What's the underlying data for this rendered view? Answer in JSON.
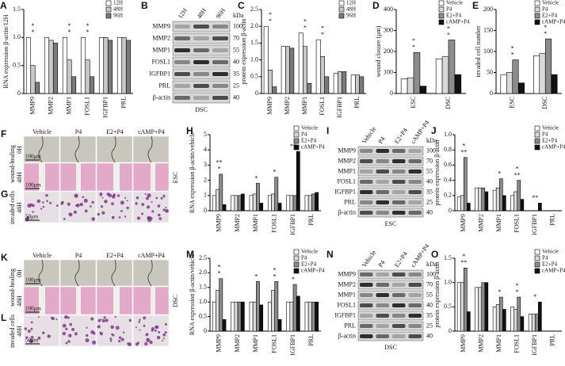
{
  "chart_data": [
    {
      "type": "bar",
      "label": "A",
      "ylabel": "RNA expression β-actin/12H",
      "categories": [
        "MMP9",
        "MMP2",
        "MMP1",
        "FOSL1",
        "IGFBP1",
        "PRL"
      ],
      "series": [
        {
          "name": "12H",
          "color": "#ffffff",
          "values": [
            1,
            1,
            1,
            1,
            1,
            1
          ]
        },
        {
          "name": "48H",
          "color": "#c8c8c8",
          "values": [
            0.5,
            0.95,
            0.6,
            0.6,
            1.0,
            1.0
          ]
        },
        {
          "name": "96H",
          "color": "#7a7a7a",
          "values": [
            0.2,
            0.9,
            0.3,
            0.3,
            0.95,
            0.95
          ]
        }
      ],
      "ylim": [
        0,
        1.5
      ],
      "yticks": [
        0,
        0.5,
        {
          "value": 1,
          "label": "1.0"
        },
        1.5
      ],
      "legend": "upper right",
      "annotations": [
        {
          "text": "*",
          "category": 0
        },
        {
          "text": "*",
          "category": 0
        },
        {
          "text": "*",
          "category": 2
        },
        {
          "text": "*",
          "category": 2
        },
        {
          "text": "*",
          "category": 3
        },
        {
          "text": "*",
          "category": 3
        }
      ]
    },
    {
      "type": "bar",
      "label": "C",
      "ylabel": "protein expression β-actin",
      "categories": [
        "MMP9",
        "MMP2",
        "MMP1",
        "FOSL1",
        "IGFBP1",
        "PRL"
      ],
      "series": [
        {
          "name": "12H",
          "color": "#ffffff",
          "values": [
            2.0,
            1.4,
            1.8,
            1.6,
            0.6,
            0.55
          ]
        },
        {
          "name": "48H",
          "color": "#c8c8c8",
          "values": [
            0.7,
            1.4,
            1.4,
            1.1,
            0.65,
            0.55
          ]
        },
        {
          "name": "96H",
          "color": "#7a7a7a",
          "values": [
            0.2,
            1.35,
            0.3,
            0.5,
            0.65,
            0.5
          ]
        }
      ],
      "ylim": [
        0,
        2.5
      ],
      "yticks": [
        0,
        0.5,
        {
          "value": 1,
          "label": "1.0"
        },
        1.5,
        {
          "value": 2,
          "label": "2.0"
        },
        2.5
      ],
      "legend": "upper right",
      "annotations": [
        {
          "text": "*",
          "category": 0
        },
        {
          "text": "*",
          "category": 0
        },
        {
          "text": "*",
          "category": 2
        },
        {
          "text": "*",
          "category": 2
        },
        {
          "text": "*",
          "category": 3
        },
        {
          "text": "*",
          "category": 3
        }
      ]
    },
    {
      "type": "bar",
      "label": "D",
      "ylabel": "wound closure (μm)",
      "categories": [
        "ESC",
        "DSC"
      ],
      "series": [
        {
          "name": "Vehicle",
          "color": "#ffffff",
          "values": [
            70,
            165
          ]
        },
        {
          "name": "P4",
          "color": "#d9d9d9",
          "values": [
            75,
            175
          ]
        },
        {
          "name": "E2+P4",
          "color": "#8c8c8c",
          "values": [
            195,
            255
          ]
        },
        {
          "name": "cAMP+P4",
          "color": "#111111",
          "values": [
            35,
            90
          ]
        }
      ],
      "ylim": [
        0,
        400
      ],
      "yticks": [
        0,
        100,
        200,
        300,
        400
      ],
      "legend": "upper right",
      "annotations": [
        {
          "text": "*",
          "category": 0
        },
        {
          "text": "*",
          "category": 0
        },
        {
          "text": "*",
          "category": 1
        },
        {
          "text": "*",
          "category": 1
        }
      ]
    },
    {
      "type": "bar",
      "label": "E",
      "ylabel": "invaded cell number",
      "categories": [
        "ESC",
        "DSC"
      ],
      "series": [
        {
          "name": "Vehicle",
          "color": "#ffffff",
          "values": [
            45,
            90
          ]
        },
        {
          "name": "P4",
          "color": "#d9d9d9",
          "values": [
            50,
            95
          ]
        },
        {
          "name": "E2+P4",
          "color": "#8c8c8c",
          "values": [
            80,
            130
          ]
        },
        {
          "name": "cAMP+P4",
          "color": "#111111",
          "values": [
            25,
            45
          ]
        }
      ],
      "ylim": [
        0,
        200
      ],
      "yticks": [
        0,
        50,
        100,
        150,
        200
      ],
      "legend": "upper right",
      "annotations": [
        {
          "text": "*",
          "category": 0
        },
        {
          "text": "*",
          "category": 0
        },
        {
          "text": "*",
          "category": 1
        },
        {
          "text": "*",
          "category": 1
        }
      ]
    },
    {
      "type": "bar",
      "label": "H",
      "ylabel": "RNA expression β-actin/vehicle",
      "categories": [
        "MMP9",
        "MMP2",
        "MMP1",
        "FOSL1",
        "IGFBP1",
        "PRL"
      ],
      "series": [
        {
          "name": "Vehicle",
          "color": "#ffffff",
          "values": [
            1,
            1,
            1,
            1,
            1,
            1
          ]
        },
        {
          "name": "P4",
          "color": "#d9d9d9",
          "values": [
            1.4,
            1.0,
            1.1,
            1.1,
            1.0,
            1.0
          ]
        },
        {
          "name": "E2+P4",
          "color": "#8c8c8c",
          "values": [
            2.4,
            1.0,
            1.8,
            2.2,
            1.0,
            1.1
          ]
        },
        {
          "name": "cAMP+P4",
          "color": "#111111",
          "values": [
            0.4,
            1.1,
            0.5,
            0.5,
            3.9,
            1.2
          ]
        }
      ],
      "ylim": [
        0,
        5
      ],
      "yticks": [
        0,
        1,
        2,
        3,
        4,
        5
      ],
      "legend": "upper right",
      "annotations": [
        {
          "text": "*",
          "category": 0
        },
        {
          "text": "**",
          "category": 0
        },
        {
          "text": "*",
          "category": 2
        },
        {
          "text": "*",
          "category": 3
        },
        {
          "text": "**",
          "category": 4
        }
      ]
    },
    {
      "type": "bar",
      "label": "J",
      "ylabel": "protein expression β-actin",
      "categories": [
        "MMP9",
        "MMP2",
        "MMP1",
        "FOSL1",
        "IGFBP1",
        "PRL"
      ],
      "series": [
        {
          "name": "Vehicle",
          "color": "#ffffff",
          "values": [
            0.18,
            0.3,
            0.27,
            0.2,
            0,
            0
          ]
        },
        {
          "name": "P4",
          "color": "#d9d9d9",
          "values": [
            0.2,
            0.3,
            0.3,
            0.25,
            0,
            0
          ]
        },
        {
          "name": "E2+P4",
          "color": "#8c8c8c",
          "values": [
            0.7,
            0.3,
            0.42,
            0.4,
            0,
            0
          ]
        },
        {
          "name": "cAMP+P4",
          "color": "#111111",
          "values": [
            0.1,
            0.25,
            0.2,
            0.15,
            0.1,
            0
          ]
        }
      ],
      "ylim": [
        0,
        1.0
      ],
      "yticks": [
        0,
        0.2,
        0.4,
        0.6,
        0.8,
        {
          "value": 1,
          "label": "1.0"
        }
      ],
      "legend": "upper right",
      "annotations": [
        {
          "text": "**",
          "category": 0
        },
        {
          "text": "*",
          "category": 0
        },
        {
          "text": "*",
          "category": 2
        },
        {
          "text": "**",
          "category": 3
        },
        {
          "text": "*",
          "category": 3
        },
        {
          "text": "**",
          "category": 4
        }
      ]
    },
    {
      "type": "bar",
      "label": "M",
      "ylabel": "RNA expression β-actin/vehicle",
      "categories": [
        "MMP9",
        "MMP2",
        "MMP1",
        "FOSL1",
        "IGFBP1",
        "PRL"
      ],
      "series": [
        {
          "name": "Vehicle",
          "color": "#ffffff",
          "values": [
            1,
            1,
            1,
            1,
            1,
            1
          ]
        },
        {
          "name": "P4",
          "color": "#d9d9d9",
          "values": [
            1.4,
            1.0,
            1.0,
            1.4,
            1.0,
            1.0
          ]
        },
        {
          "name": "E2+P4",
          "color": "#8c8c8c",
          "values": [
            1.8,
            1.0,
            1.7,
            1.7,
            1.6,
            1.0
          ]
        },
        {
          "name": "cAMP+P4",
          "color": "#111111",
          "values": [
            0.4,
            1.0,
            0.9,
            0.4,
            1.2,
            1.0
          ]
        }
      ],
      "ylim": [
        0,
        2.5
      ],
      "yticks": [
        0,
        0.5,
        {
          "value": 1,
          "label": "1.0"
        },
        1.5,
        {
          "value": 2,
          "label": "2.0"
        },
        2.5
      ],
      "legend": "upper right",
      "annotations": [
        {
          "text": "*",
          "category": 0
        },
        {
          "text": "*",
          "category": 0
        },
        {
          "text": "*",
          "category": 2
        },
        {
          "text": "*",
          "category": 3
        },
        {
          "text": "*",
          "category": 3
        },
        {
          "text": "*",
          "category": 4
        }
      ]
    },
    {
      "type": "bar",
      "label": "O",
      "ylabel": "protein expression β-actin",
      "categories": [
        "MMP9",
        "MMP2",
        "MMP1",
        "FOSL1",
        "IGFBP1",
        "PRL"
      ],
      "series": [
        {
          "name": "Vehicle",
          "color": "#ffffff",
          "values": [
            1.0,
            0.9,
            0.5,
            0.5,
            0.35,
            null
          ]
        },
        {
          "name": "P4",
          "color": "#d9d9d9",
          "values": [
            1.0,
            0.9,
            0.55,
            0.45,
            0.35,
            null
          ]
        },
        {
          "name": "E2+P4",
          "color": "#8c8c8c",
          "values": [
            1.3,
            1.0,
            0.7,
            0.7,
            0.35,
            null
          ]
        },
        {
          "name": "cAMP+P4",
          "color": "#111111",
          "values": [
            0.4,
            1.0,
            0.45,
            0.3,
            0.6,
            null
          ]
        }
      ],
      "ylim": [
        0,
        1.5
      ],
      "yticks": [
        0,
        0.5,
        {
          "value": 1,
          "label": "1.0"
        },
        1.5
      ],
      "legend": "upper right",
      "annotations": [
        {
          "text": "**",
          "category": 0
        },
        {
          "text": "*",
          "category": 0
        },
        {
          "text": "*",
          "category": 2
        },
        {
          "text": "*",
          "category": 3
        },
        {
          "text": "*",
          "category": 3
        },
        {
          "text": "*",
          "category": 4
        }
      ]
    }
  ],
  "blots": [
    {
      "label": "B",
      "lanes": [
        "12H",
        "48H",
        "96H"
      ],
      "unit": "kDa",
      "rows": [
        {
          "name": "MMP9",
          "kda": 100
        },
        {
          "name": "MMP2",
          "kda": 70
        },
        {
          "name": "MMP1",
          "kda": 55
        },
        {
          "name": "FOSL1",
          "kda": 40
        },
        {
          "name": "IGFBP1",
          "kda": 35
        },
        {
          "name": "PRL",
          "kda": 25
        },
        {
          "name": "β-actin",
          "kda": 40
        }
      ],
      "footer": "DSC"
    },
    {
      "label": "I",
      "lanes": [
        "Vehicle",
        "P4",
        "E2+P4",
        "cAMP+P4"
      ],
      "unit": "kDa",
      "rows": [
        {
          "name": "MMP9",
          "kda": 100
        },
        {
          "name": "MMP2",
          "kda": 70
        },
        {
          "name": "MMP1",
          "kda": 55
        },
        {
          "name": "FOSL1",
          "kda": 40
        },
        {
          "name": "IGFBP1",
          "kda": 35
        },
        {
          "name": "PRL",
          "kda": 25
        },
        {
          "name": "β-actin",
          "kda": 40
        }
      ],
      "footer": "ESC"
    },
    {
      "label": "N",
      "lanes": [
        "Vehicle",
        "P4",
        "E2+P4",
        "cAMP+P4"
      ],
      "unit": "kDa",
      "rows": [
        {
          "name": "MMP9",
          "kda": 100
        },
        {
          "name": "MMP2",
          "kda": 70
        },
        {
          "name": "MMP1",
          "kda": 55
        },
        {
          "name": "FOSL1",
          "kda": 40
        },
        {
          "name": "IGFBP1",
          "kda": 35
        },
        {
          "name": "PRL",
          "kda": 25
        },
        {
          "name": "β-actin",
          "kda": 40
        }
      ],
      "footer": "DSC"
    }
  ],
  "micrographs": [
    {
      "letters": [
        "F",
        "G"
      ],
      "columns": [
        "Vehicle",
        "P4",
        "E2+P4",
        "cAMP+P4"
      ],
      "row_labels": [
        "0H",
        "48H",
        "48H"
      ],
      "group_labels": [
        "wound-healing",
        "invaded cells"
      ],
      "scale_bars": [
        "100μm",
        "100μm",
        "50μm"
      ],
      "tissue": "ESC"
    },
    {
      "letters": [
        "K",
        "L"
      ],
      "columns": [
        "Vehicle",
        "P4",
        "E2+P4",
        "cAMP+P4"
      ],
      "row_labels": [
        "0H",
        "48H",
        "48H"
      ],
      "group_labels": [
        "wound-healing",
        "invaded cells"
      ],
      "scale_bars": [
        "100μm",
        "100μm",
        "50μm"
      ],
      "tissue": "DSC"
    }
  ]
}
